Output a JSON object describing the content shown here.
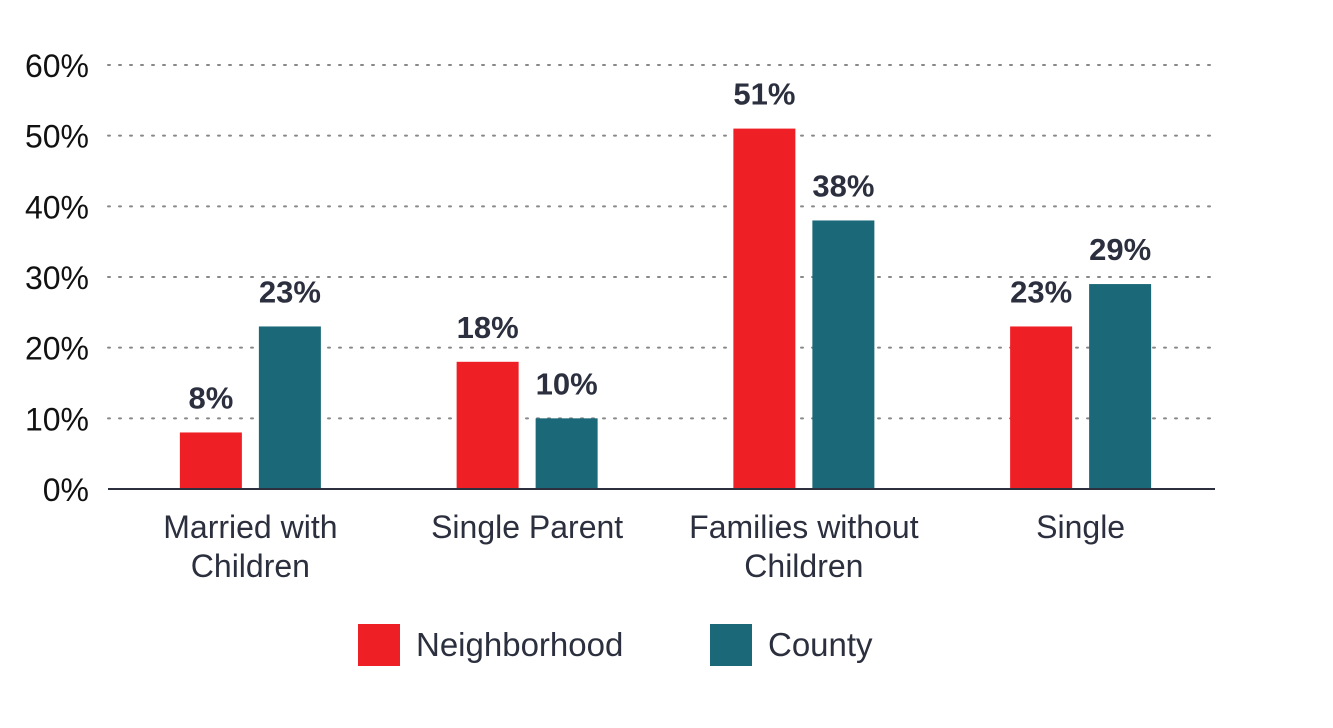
{
  "chart_data": {
    "type": "bar",
    "categories": [
      [
        "Married with",
        "Children"
      ],
      [
        "Single Parent"
      ],
      [
        "Families without",
        "Children"
      ],
      [
        "Single"
      ]
    ],
    "series": [
      {
        "name": "Neighborhood",
        "color": "#ee1f25",
        "values": [
          8,
          18,
          51,
          23
        ]
      },
      {
        "name": "County",
        "color": "#1a6878",
        "values": [
          23,
          10,
          38,
          29
        ]
      }
    ],
    "ylim": [
      0,
      60
    ],
    "yticks": [
      0,
      10,
      20,
      30,
      40,
      50,
      60
    ],
    "ytick_labels": [
      "0%",
      "10%",
      "20%",
      "30%",
      "40%",
      "50%",
      "60%"
    ],
    "data_labels": [
      [
        "8%",
        "18%",
        "51%",
        "23%"
      ],
      [
        "23%",
        "10%",
        "38%",
        "29%"
      ]
    ],
    "grid": true,
    "legend_position": "bottom"
  }
}
